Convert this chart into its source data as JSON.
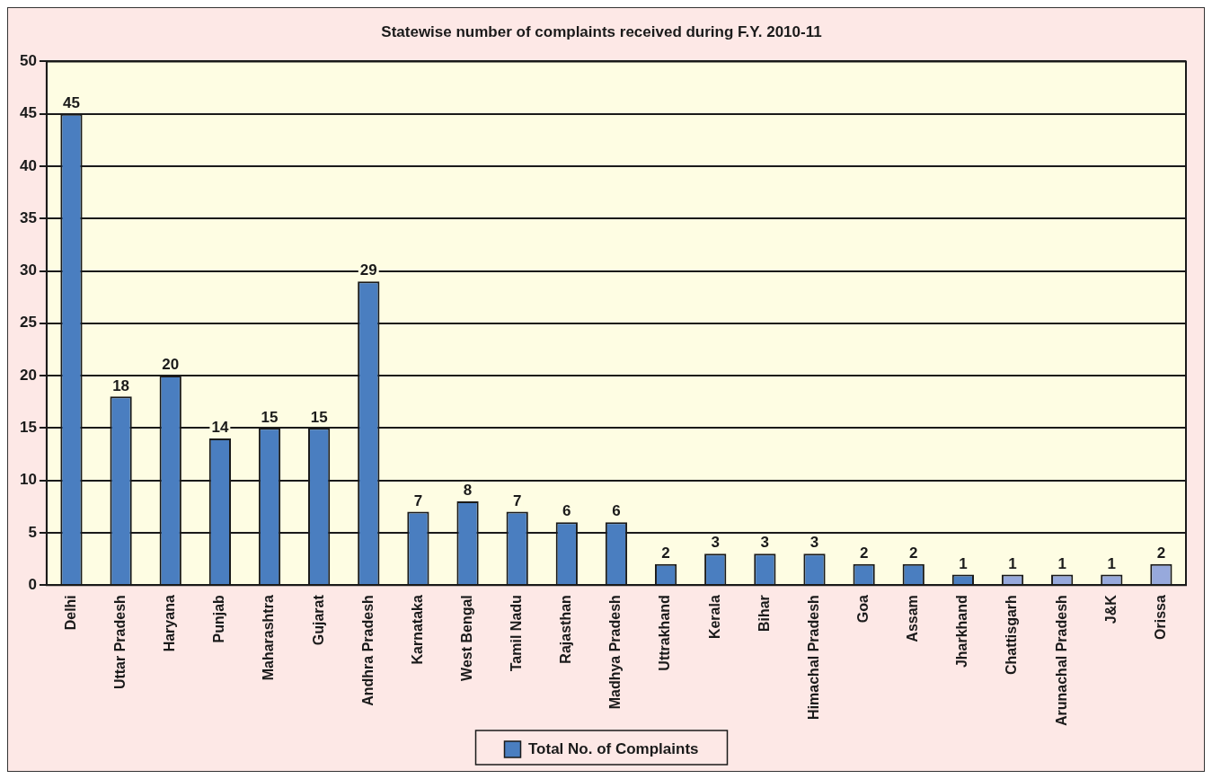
{
  "chart_data": {
    "type": "bar",
    "title": "Statewise number of complaints received during F.Y. 2010-11",
    "categories": [
      "Delhi",
      "Uttar Pradesh",
      "Haryana",
      "Punjab",
      "Maharashtra",
      "Gujarat",
      "Andhra Pradesh",
      "Karnataka",
      "West Bengal",
      "Tamil Nadu",
      "Rajasthan",
      "Madhya Pradesh",
      "Uttrakhand",
      "Kerala",
      "Bihar",
      "Himachal Pradesh",
      "Goa",
      "Assam",
      "Jharkhand",
      "Chattisgarh",
      "Arunachal Pradesh",
      "J&K",
      "Orissa"
    ],
    "series": [
      {
        "name": "Total No. of Complaints",
        "color": "#4a7ec0",
        "values": [
          45,
          18,
          20,
          14,
          15,
          15,
          29,
          7,
          8,
          7,
          6,
          6,
          2,
          3,
          3,
          3,
          2,
          2,
          1,
          1,
          1,
          1,
          2
        ],
        "colors": [
          "#4a7ec0",
          "#4a7ec0",
          "#4a7ec0",
          "#4a7ec0",
          "#4a7ec0",
          "#4a7ec0",
          "#4a7ec0",
          "#4a7ec0",
          "#4a7ec0",
          "#4a7ec0",
          "#4a7ec0",
          "#4a7ec0",
          "#4a7ec0",
          "#4a7ec0",
          "#4a7ec0",
          "#4a7ec0",
          "#4a7ec0",
          "#4a7ec0",
          "#4a7ec0",
          "#97a9dc",
          "#97a9dc",
          "#97a9dc",
          "#97a9dc"
        ]
      }
    ],
    "ylim": [
      0,
      50
    ],
    "yticks": [
      0,
      5,
      10,
      15,
      20,
      25,
      30,
      35,
      40,
      45,
      50
    ],
    "grid": "y",
    "legend": "bottom",
    "data_labels": true
  }
}
